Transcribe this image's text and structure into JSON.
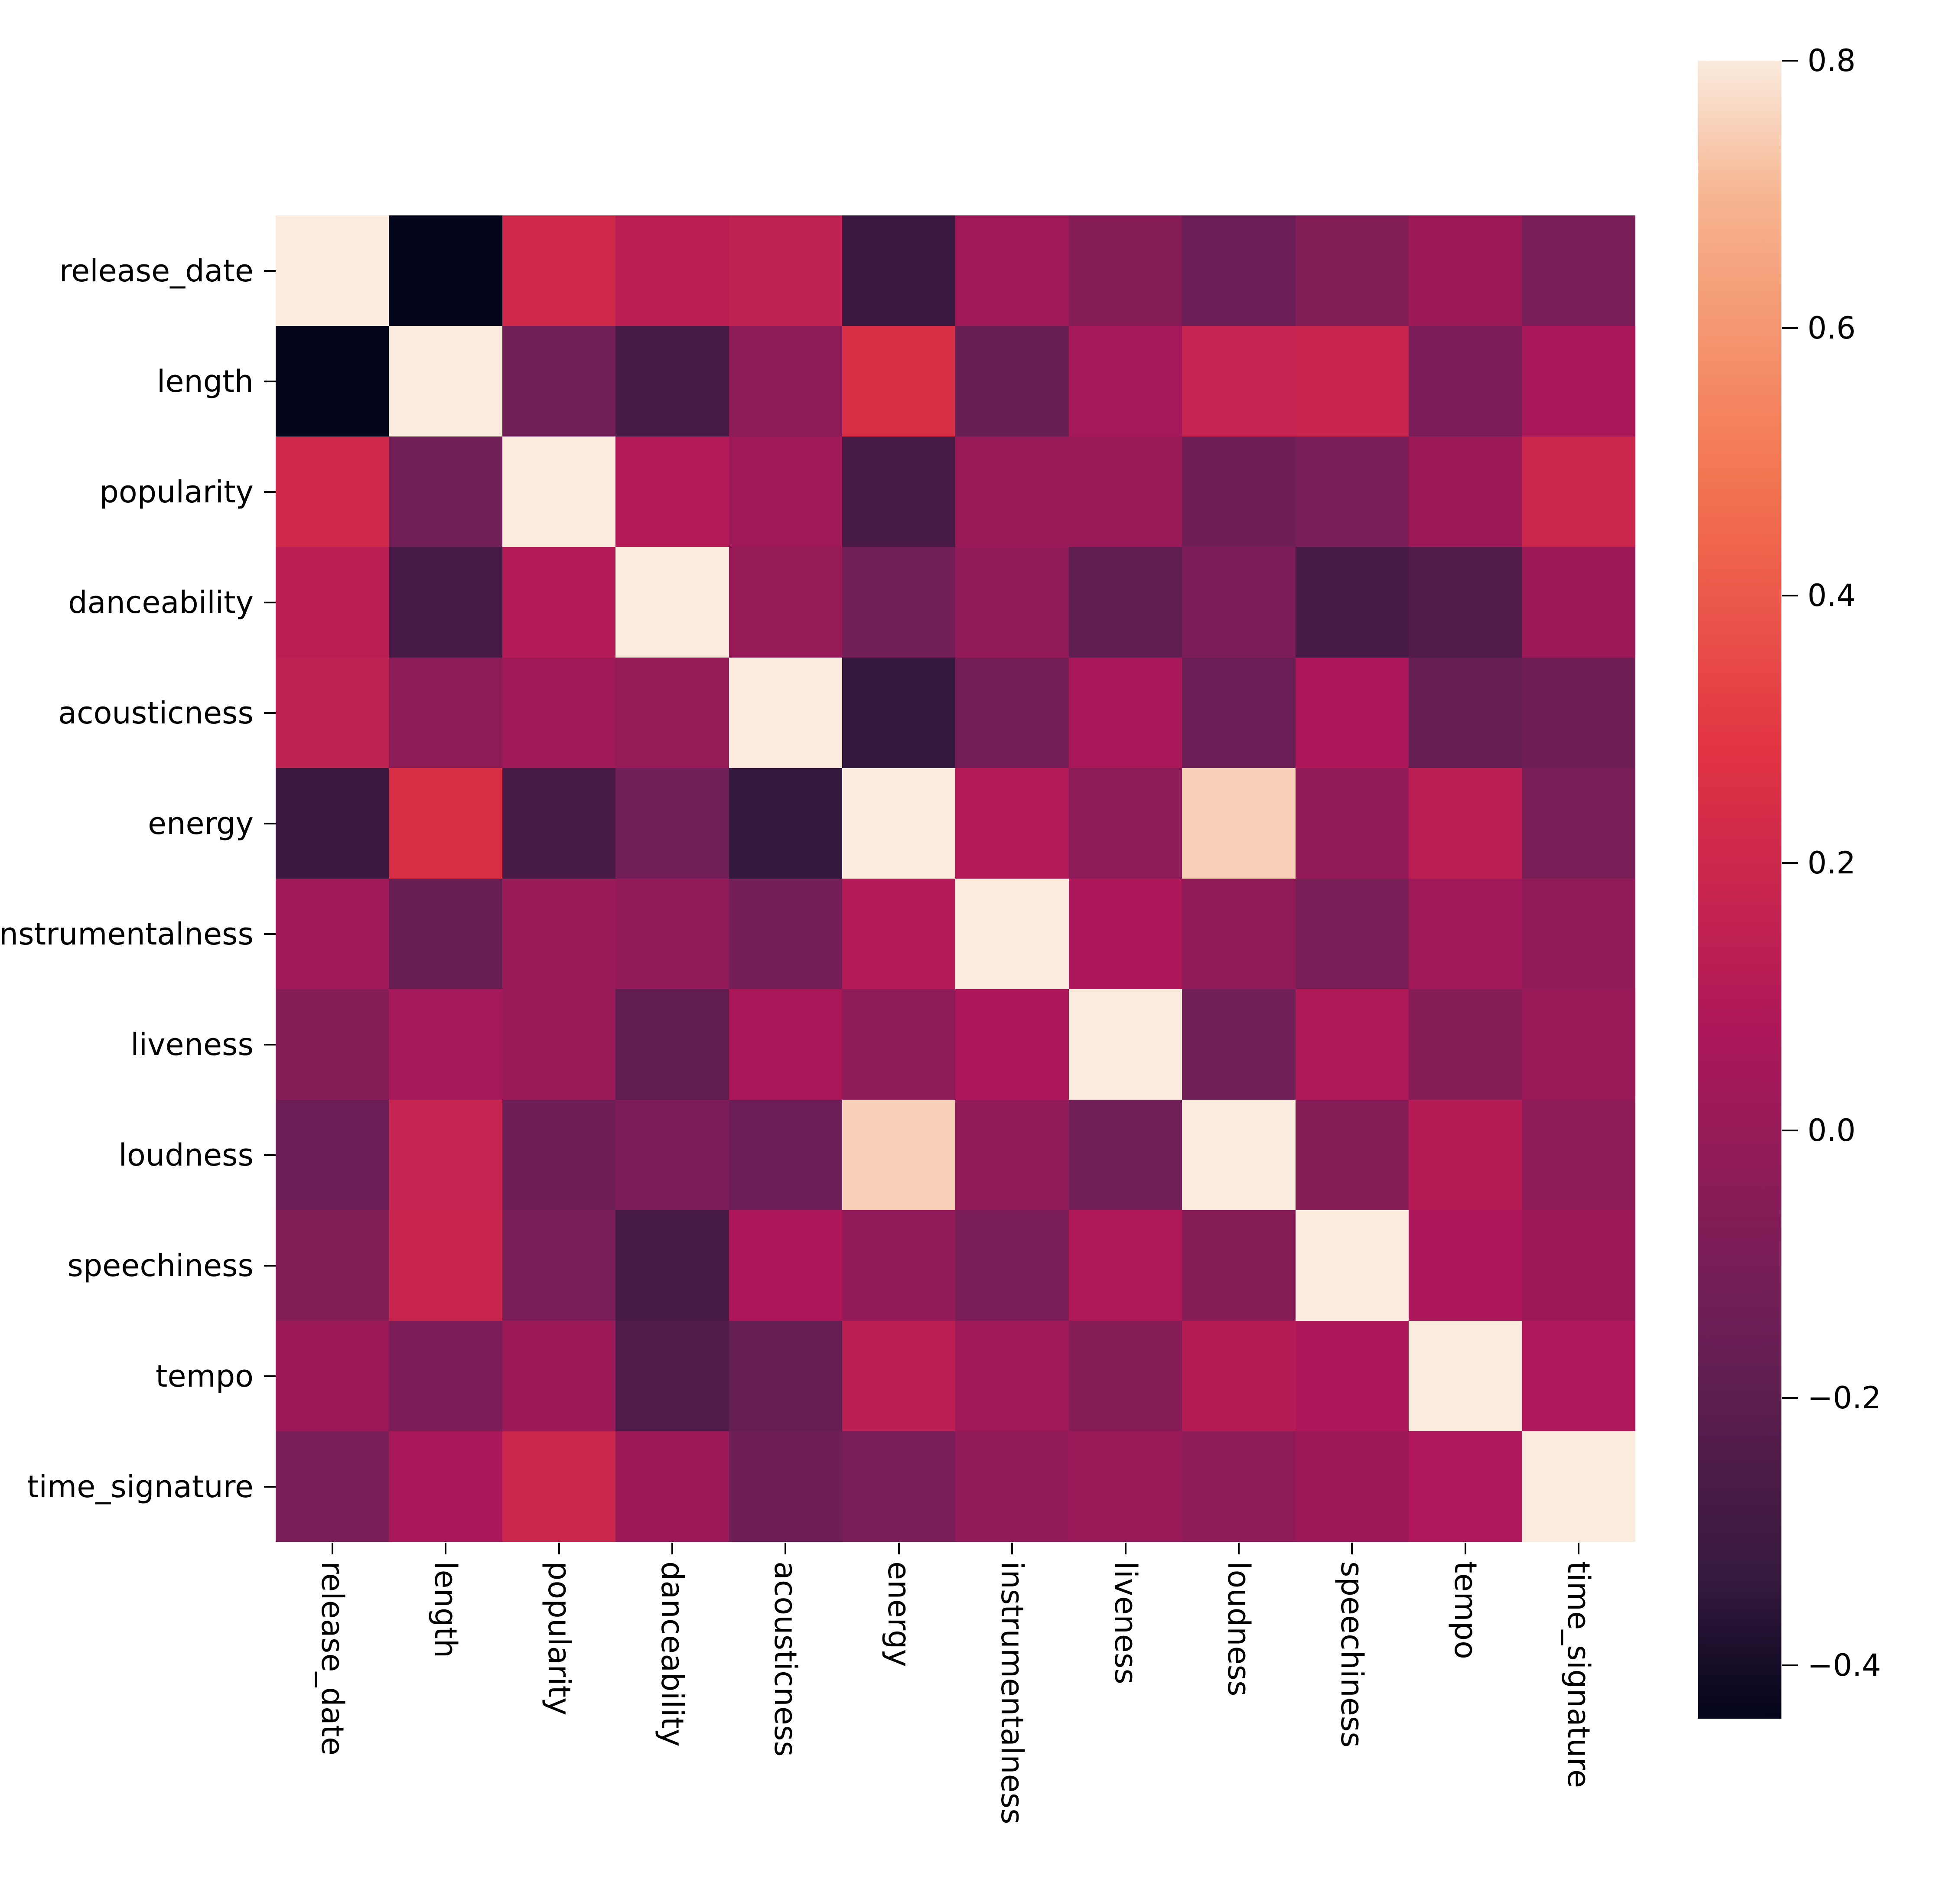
{
  "figure": {
    "background": "#ffffff",
    "description": "Correlation heatmap of Spotify audio features (seaborn rocket colormap)"
  },
  "chart_data": {
    "type": "heatmap",
    "title": "",
    "xlabel": "",
    "ylabel": "",
    "grid": false,
    "legend_position": "right-colorbar",
    "colormap": "rocket",
    "vmin": -0.44,
    "vmax": 0.8,
    "diagonal_value": 1.0,
    "variables": [
      "release_date",
      "length",
      "popularity",
      "danceability",
      "acousticness",
      "energy",
      "instrumentalness",
      "liveness",
      "loudness",
      "speechiness",
      "tempo",
      "time_signature"
    ],
    "x_tick_labels": [
      "release_date",
      "length",
      "popularity",
      "danceability",
      "acousticness",
      "energy",
      "instrumentalness",
      "liveness",
      "loudness",
      "speechiness",
      "tempo",
      "time_signature"
    ],
    "y_tick_labels": [
      "release_date",
      "length",
      "popularity",
      "danceability",
      "acousticness",
      "energy",
      "instrumentalness",
      "liveness",
      "loudness",
      "speechiness",
      "tempo",
      "time_signature"
    ],
    "matrix": [
      [
        1.0,
        -0.44,
        0.21,
        0.13,
        0.15,
        -0.32,
        0.03,
        -0.06,
        -0.15,
        -0.07,
        0.02,
        -0.1
      ],
      [
        -0.44,
        1.0,
        -0.12,
        -0.27,
        -0.03,
        0.25,
        -0.16,
        0.05,
        0.17,
        0.18,
        -0.09,
        0.06
      ],
      [
        0.21,
        -0.12,
        1.0,
        0.1,
        0.03,
        -0.27,
        0.01,
        0.01,
        -0.14,
        -0.1,
        0.02,
        0.19
      ],
      [
        0.13,
        -0.27,
        0.1,
        1.0,
        0.0,
        -0.12,
        -0.01,
        -0.19,
        -0.09,
        -0.27,
        -0.24,
        0.02
      ],
      [
        0.15,
        -0.03,
        0.03,
        0.0,
        1.0,
        -0.34,
        -0.11,
        0.06,
        -0.15,
        0.07,
        -0.17,
        -0.14
      ],
      [
        -0.32,
        0.25,
        -0.27,
        -0.12,
        -0.34,
        1.0,
        0.1,
        -0.03,
        0.75,
        -0.01,
        0.13,
        -0.1
      ],
      [
        0.03,
        -0.16,
        0.01,
        -0.01,
        -0.11,
        0.1,
        1.0,
        0.07,
        -0.02,
        -0.1,
        0.03,
        -0.02
      ],
      [
        -0.06,
        0.05,
        0.01,
        -0.19,
        0.06,
        -0.03,
        0.07,
        1.0,
        -0.13,
        0.09,
        -0.06,
        0.01
      ],
      [
        -0.15,
        0.17,
        -0.14,
        -0.09,
        -0.15,
        0.75,
        -0.02,
        -0.13,
        1.0,
        -0.06,
        0.11,
        -0.03
      ],
      [
        -0.07,
        0.18,
        -0.1,
        -0.27,
        0.07,
        -0.01,
        -0.1,
        0.09,
        -0.06,
        1.0,
        0.07,
        0.02
      ],
      [
        0.02,
        -0.09,
        0.02,
        -0.24,
        -0.17,
        0.13,
        0.03,
        -0.06,
        0.11,
        0.07,
        1.0,
        0.08
      ],
      [
        -0.1,
        0.06,
        0.19,
        0.02,
        -0.14,
        -0.1,
        -0.02,
        0.01,
        -0.03,
        0.02,
        0.08,
        1.0
      ]
    ],
    "colorbar_ticks": [
      {
        "label": "0.8",
        "value": 0.8
      },
      {
        "label": "0.6",
        "value": 0.6
      },
      {
        "label": "0.4",
        "value": 0.4
      },
      {
        "label": "0.2",
        "value": 0.2
      },
      {
        "label": "0.0",
        "value": 0.0
      },
      {
        "label": "−0.2",
        "value": -0.2
      },
      {
        "label": "−0.4",
        "value": -0.4
      }
    ],
    "colormap_key_colors": {
      "max": "#FAEBDD",
      "mid": "#AD1759",
      "min": "#03051A",
      "peach_high_corr": "#F7D4B4"
    }
  }
}
